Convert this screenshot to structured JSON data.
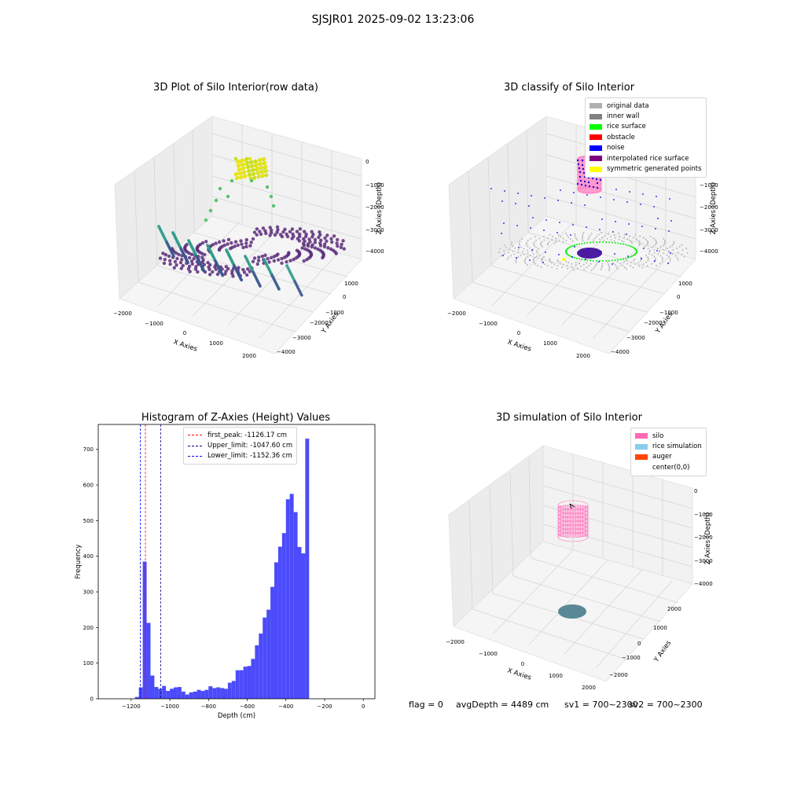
{
  "suptitle": "SJSJR01 2025-09-02 13:23:06",
  "panels": {
    "raw": {
      "title": "3D Plot of Silo Interior(row data)",
      "xlabel": "X Axies",
      "ylabel": "Y Axies",
      "zlabel": "Z Axies (Depth)",
      "xticks": [
        "−2000",
        "−1000",
        "0",
        "1000",
        "2000"
      ],
      "yticks": [
        "1000",
        "0",
        "−1000",
        "−2000",
        "−3000",
        "−4000"
      ],
      "zticks": [
        "0",
        "−1000",
        "−2000",
        "−3000",
        "−4000"
      ]
    },
    "classify": {
      "title": "3D classify of Silo Interior",
      "xlabel": "X Axies",
      "ylabel": "Y Axies",
      "zlabel": "Z Axies (Depth)",
      "xticks": [
        "−2000",
        "−1000",
        "0",
        "1000",
        "2000"
      ],
      "yticks": [
        "1000",
        "0",
        "−1000",
        "−2000",
        "−3000",
        "−4000"
      ],
      "zticks": [
        "0",
        "−1000",
        "−2000",
        "−3000",
        "−4000"
      ],
      "legend": [
        {
          "label": "original data",
          "color": "#b0b0b0"
        },
        {
          "label": "inner wall",
          "color": "#808080"
        },
        {
          "label": "rice surface",
          "color": "#00ff00"
        },
        {
          "label": "obstacle",
          "color": "#ff0000"
        },
        {
          "label": "noise",
          "color": "#0000ff"
        },
        {
          "label": "interpolated rice surface",
          "color": "#800080"
        },
        {
          "label": "symmetric generated points",
          "color": "#ffff00"
        }
      ]
    },
    "simulation": {
      "title": "3D simulation of Silo Interior",
      "xlabel": "X Axies",
      "ylabel": "Y Axies",
      "zlabel": "Z Axies (Depth)",
      "xticks": [
        "−2000",
        "−1000",
        "0",
        "1000",
        "2000"
      ],
      "yticks": [
        "2000",
        "1000",
        "0",
        "−1000",
        "−2000"
      ],
      "zticks": [
        "0",
        "−1000",
        "−2000",
        "−3000",
        "−4000"
      ],
      "legend": [
        {
          "label": "silo",
          "color": "#ff69b4"
        },
        {
          "label": "rice simulation",
          "color": "#87ceeb"
        },
        {
          "label": "auger",
          "color": "#ff4500"
        },
        {
          "label": "center(0,0)",
          "color": "#ffffff"
        }
      ]
    }
  },
  "chart_data": {
    "type": "bar",
    "title": "Histogram of Z-Axies (Height) Values",
    "xlabel": "Depth (cm)",
    "ylabel": "Frequency",
    "xlim": [
      -1370,
      60
    ],
    "ylim": [
      0,
      770
    ],
    "bin_width": 20,
    "xticks": [
      -1200,
      -1000,
      -800,
      -600,
      -400,
      -200,
      0
    ],
    "xtick_labels": [
      "−1200",
      "−1000",
      "−800",
      "−600",
      "−400",
      "−200",
      "0"
    ],
    "yticks": [
      0,
      100,
      200,
      300,
      400,
      500,
      600,
      700
    ],
    "bar_color": "#4b4bfb",
    "bins_start": [
      -1180,
      -1160,
      -1140,
      -1120,
      -1100,
      -1080,
      -1060,
      -1040,
      -1020,
      -1000,
      -980,
      -960,
      -940,
      -920,
      -900,
      -880,
      -860,
      -840,
      -820,
      -800,
      -780,
      -760,
      -740,
      -720,
      -700,
      -680,
      -660,
      -640,
      -620,
      -600,
      -580,
      -560,
      -540,
      -520,
      -500,
      -480,
      -460,
      -440,
      -420,
      -400,
      -380,
      -360,
      -340,
      -320,
      -300,
      -280,
      -260,
      -240,
      -220,
      -200,
      -180,
      -160,
      -140,
      -120,
      -100,
      -80,
      -60,
      -40,
      -20
    ],
    "values": [
      5,
      32,
      385,
      213,
      65,
      33,
      28,
      36,
      22,
      28,
      32,
      33,
      20,
      12,
      18,
      20,
      25,
      22,
      25,
      35,
      30,
      32,
      30,
      28,
      45,
      50,
      80,
      80,
      90,
      92,
      112,
      150,
      183,
      228,
      250,
      314,
      383,
      427,
      465,
      560,
      575,
      524,
      426,
      408,
      730,
      0,
      0,
      0,
      0,
      0,
      0,
      0,
      0,
      0,
      0,
      0,
      0,
      0,
      0
    ],
    "lines": [
      {
        "name": "first_peak: -1126.17 cm",
        "x": -1126.17,
        "color": "#ff0000"
      },
      {
        "name": "Upper_limit: -1047.60 cm",
        "x": -1047.6,
        "color": "#000080"
      },
      {
        "name": "Lower_limit: -1152.36 cm",
        "x": -1152.36,
        "color": "#0000ff"
      }
    ]
  },
  "status": {
    "flag": "flag = 0",
    "avg": "avgDepth = 4489 cm",
    "sv1": "sv1 = 700~2300",
    "sv2": "sv2 = 700~2300"
  }
}
